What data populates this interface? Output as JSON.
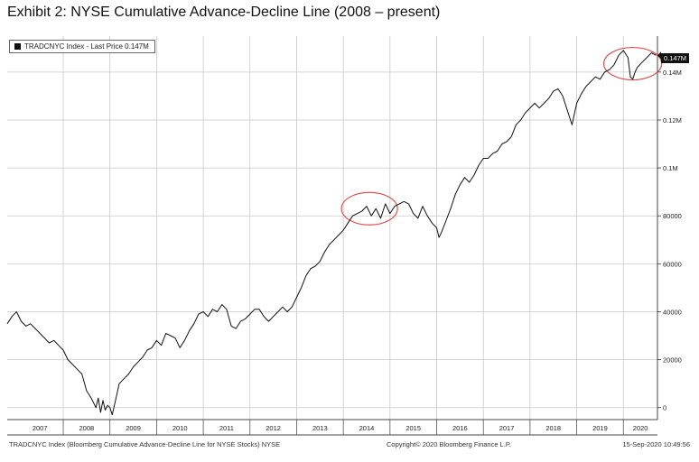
{
  "title": "Exhibit 2: NYSE Cumulative Advance-Decline Line (2008 – present)",
  "legend": {
    "label": "TRADCNYC Index - Last Price 0.147M"
  },
  "last_price_label": "0.147M",
  "footer": {
    "source": "TRADCNYC Index (Bloomberg Cumulative Advance-Decline Line for NYSE Stocks) NYSE",
    "copyright": "Copyright© 2020 Bloomberg Finance L.P.",
    "timestamp": "15-Sep-2020 10:49:56"
  },
  "colors": {
    "line": "#111111",
    "grid": "#c8c8c8",
    "highlight": "#d9534f",
    "background": "#ffffff"
  },
  "chart_data": {
    "type": "line",
    "title": "Exhibit 2: NYSE Cumulative Advance-Decline Line (2008 – present)",
    "xlabel": "",
    "ylabel": "",
    "ylim": [
      -5000,
      155000
    ],
    "xlim": [
      2006.8,
      2020.73
    ],
    "grid": true,
    "y_axis_side": "right",
    "yticks": [
      0,
      20000,
      40000,
      60000,
      80000,
      100000,
      120000,
      140000
    ],
    "ytick_labels": [
      "0",
      "20000",
      "40000",
      "60000",
      "80000",
      "0.1M",
      "0.12M",
      "0.14M"
    ],
    "xtick_labels": [
      "2007",
      "2008",
      "2009",
      "2010",
      "2011",
      "2012",
      "2013",
      "2014",
      "2015",
      "2016",
      "2017",
      "2018",
      "2019",
      "2020"
    ],
    "legend_placement": "top-left",
    "series": [
      {
        "name": "TRADCNYC Index - Last Price 0.147M",
        "x": [
          2006.8,
          2006.9,
          2007.0,
          2007.1,
          2007.2,
          2007.3,
          2007.4,
          2007.5,
          2007.6,
          2007.7,
          2007.8,
          2007.9,
          2008.0,
          2008.1,
          2008.2,
          2008.3,
          2008.4,
          2008.5,
          2008.6,
          2008.7,
          2008.75,
          2008.8,
          2008.85,
          2008.9,
          2008.95,
          2009.0,
          2009.05,
          2009.12,
          2009.2,
          2009.3,
          2009.4,
          2009.5,
          2009.6,
          2009.7,
          2009.8,
          2009.9,
          2010.0,
          2010.1,
          2010.2,
          2010.3,
          2010.4,
          2010.5,
          2010.6,
          2010.7,
          2010.8,
          2010.9,
          2011.0,
          2011.1,
          2011.2,
          2011.3,
          2011.4,
          2011.5,
          2011.6,
          2011.7,
          2011.8,
          2011.9,
          2012.0,
          2012.1,
          2012.2,
          2012.3,
          2012.4,
          2012.5,
          2012.6,
          2012.7,
          2012.8,
          2012.9,
          2013.0,
          2013.1,
          2013.2,
          2013.3,
          2013.4,
          2013.5,
          2013.6,
          2013.7,
          2013.8,
          2013.9,
          2014.0,
          2014.1,
          2014.2,
          2014.3,
          2014.4,
          2014.5,
          2014.6,
          2014.7,
          2014.8,
          2014.9,
          2015.0,
          2015.1,
          2015.2,
          2015.3,
          2015.4,
          2015.5,
          2015.6,
          2015.7,
          2015.8,
          2015.9,
          2016.0,
          2016.05,
          2016.1,
          2016.2,
          2016.3,
          2016.4,
          2016.5,
          2016.6,
          2016.7,
          2016.8,
          2016.9,
          2017.0,
          2017.1,
          2017.2,
          2017.3,
          2017.4,
          2017.5,
          2017.6,
          2017.7,
          2017.8,
          2017.9,
          2018.0,
          2018.1,
          2018.2,
          2018.3,
          2018.4,
          2018.5,
          2018.6,
          2018.7,
          2018.8,
          2018.9,
          2019.0,
          2019.1,
          2019.2,
          2019.3,
          2019.4,
          2019.5,
          2019.6,
          2019.7,
          2019.8,
          2019.9,
          2020.0,
          2020.1,
          2020.15,
          2020.2,
          2020.25,
          2020.3,
          2020.4,
          2020.5,
          2020.6,
          2020.7
        ],
        "y": [
          35000,
          38000,
          40000,
          36000,
          34000,
          35000,
          33000,
          31000,
          29000,
          27000,
          28000,
          26000,
          24000,
          20000,
          18000,
          16000,
          14000,
          7000,
          4000,
          0,
          4000,
          -2000,
          3000,
          -1000,
          1000,
          0,
          -3000,
          3000,
          10000,
          12000,
          14000,
          17000,
          19000,
          21000,
          24000,
          25000,
          28000,
          26000,
          31000,
          30000,
          29000,
          25000,
          28000,
          32000,
          35000,
          39000,
          40000,
          38000,
          41000,
          40000,
          43000,
          41000,
          34000,
          33000,
          36000,
          37000,
          39000,
          41000,
          41000,
          38000,
          36000,
          38000,
          40000,
          42000,
          40000,
          42000,
          46000,
          50000,
          55000,
          58000,
          59000,
          61000,
          65000,
          68000,
          70000,
          72000,
          74000,
          77000,
          80000,
          81000,
          82000,
          84000,
          80000,
          83000,
          79000,
          85000,
          81000,
          84000,
          85000,
          86000,
          85000,
          81000,
          79000,
          84000,
          80000,
          77000,
          75000,
          71000,
          73000,
          78000,
          83000,
          89000,
          93000,
          96000,
          94000,
          97000,
          101000,
          104000,
          104000,
          106000,
          107000,
          110000,
          111000,
          113000,
          118000,
          120000,
          123000,
          125000,
          127000,
          125000,
          127000,
          129000,
          132000,
          133000,
          130000,
          124000,
          118000,
          127000,
          131000,
          134000,
          136000,
          138000,
          137000,
          140000,
          141000,
          143000,
          147000,
          149000,
          146000,
          138000,
          137000,
          140000,
          142000,
          144000,
          146000,
          148000,
          147000
        ]
      }
    ]
  }
}
